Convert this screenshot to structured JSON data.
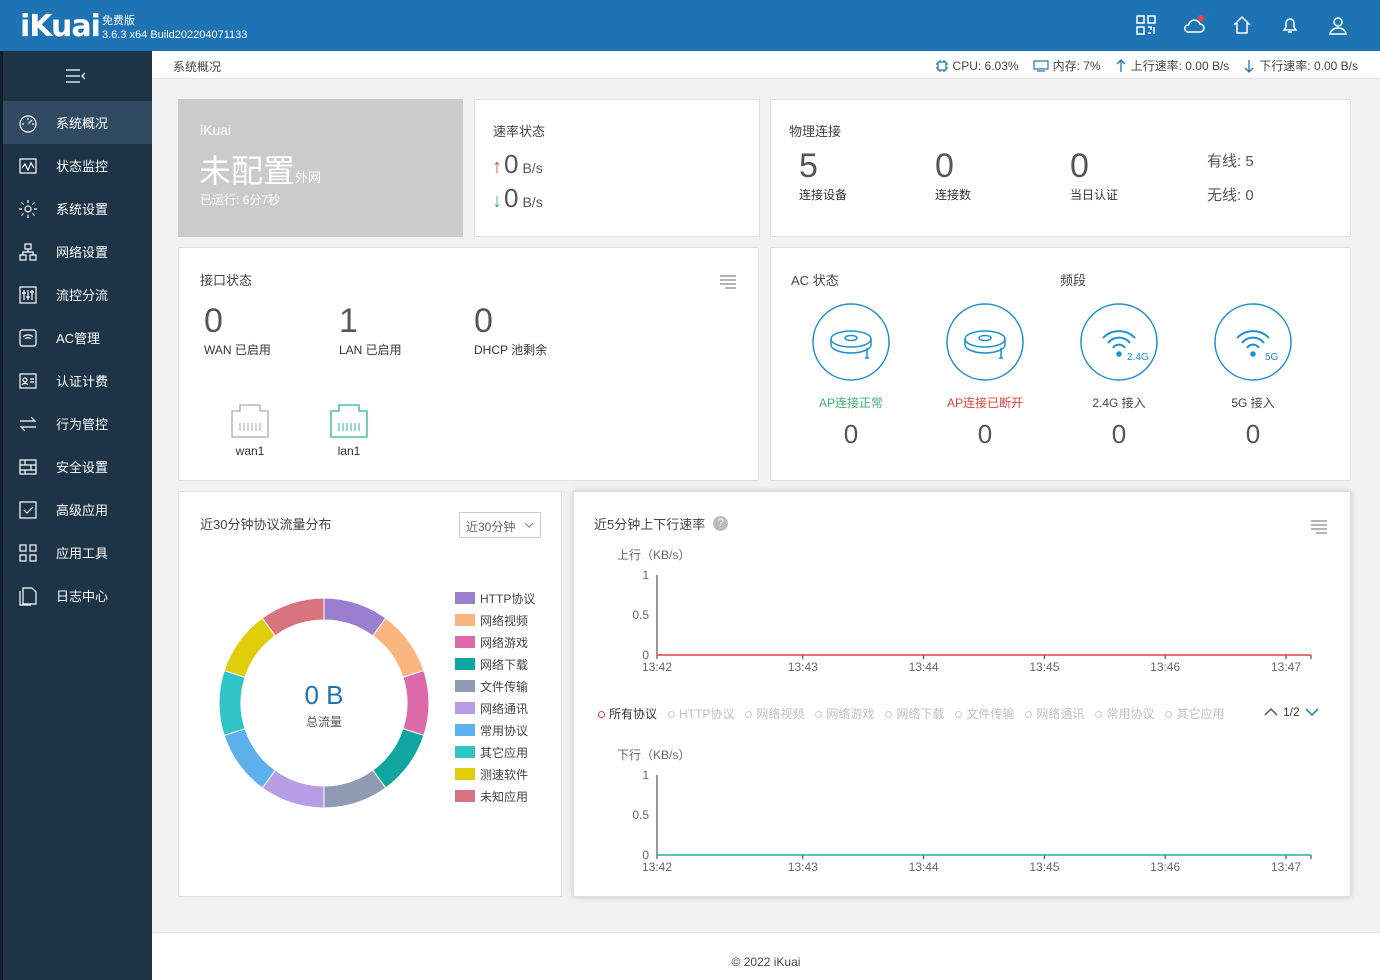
{
  "header": {
    "logo": "iKuai",
    "edition": "免费版",
    "build": "3.6.3 x64 Build202204071133",
    "icons": [
      "qr-grid-icon",
      "cloud-icon",
      "home-icon",
      "bell-icon",
      "user-icon"
    ]
  },
  "sidebar": {
    "items": [
      {
        "label": "系统概况",
        "icon": "dashboard-icon",
        "active": true
      },
      {
        "label": "状态监控",
        "icon": "monitor-icon"
      },
      {
        "label": "系统设置",
        "icon": "gear-icon"
      },
      {
        "label": "网络设置",
        "icon": "network-icon"
      },
      {
        "label": "流控分流",
        "icon": "sliders-icon"
      },
      {
        "label": "AC管理",
        "icon": "wifi-box-icon"
      },
      {
        "label": "认证计费",
        "icon": "id-card-icon"
      },
      {
        "label": "行为管控",
        "icon": "exchange-icon"
      },
      {
        "label": "安全设置",
        "icon": "firewall-icon"
      },
      {
        "label": "高级应用",
        "icon": "check-box-icon"
      },
      {
        "label": "应用工具",
        "icon": "apps-icon"
      },
      {
        "label": "日志中心",
        "icon": "log-icon"
      }
    ]
  },
  "subbar": {
    "breadcrumb": "系统概况",
    "cpu": "CPU: 6.03%",
    "mem": "内存: 7%",
    "up": "上行速率: 0.00 B/s",
    "down": "下行速率: 0.00 B/s"
  },
  "status_card": {
    "brand": "iKuai",
    "state": "未配置",
    "state_suffix": "外网",
    "uptime": "已运行: 6分7秒"
  },
  "rate_card": {
    "title": "速率状态",
    "up_value": "0",
    "up_unit": "B/s",
    "down_value": "0",
    "down_unit": "B/s"
  },
  "physical_card": {
    "title": "物理连接",
    "items": [
      {
        "value": "5",
        "label": "连接设备"
      },
      {
        "value": "0",
        "label": "连接数"
      },
      {
        "value": "0",
        "label": "当日认证"
      }
    ],
    "wired": "有线: 5",
    "wireless": "无线: 0"
  },
  "iface_card": {
    "title": "接口状态",
    "items": [
      {
        "value": "0",
        "label": "WAN 已启用"
      },
      {
        "value": "1",
        "label": "LAN 已启用"
      },
      {
        "value": "0",
        "label": "DHCP 池剩余"
      }
    ],
    "ports": [
      "wan1",
      "lan1"
    ]
  },
  "ac_card": {
    "title": "AC 状态",
    "band_title": "频段",
    "items": [
      {
        "label": "AP连接正常",
        "value": "0",
        "color": "#3cb371"
      },
      {
        "label": "AP连接已断开",
        "value": "0",
        "color": "#e0443d"
      },
      {
        "label": "2.4G 接入",
        "value": "0",
        "color": "#444444",
        "badge": "2.4G"
      },
      {
        "label": "5G 接入",
        "value": "0",
        "color": "#444444",
        "badge": "5G"
      }
    ]
  },
  "protocol_card": {
    "title": "近30分钟协议流量分布",
    "select": "近30分钟",
    "center_value": "0 B",
    "center_label": "总流量",
    "legend": [
      {
        "name": "HTTP协议",
        "color": "#9a7fd1"
      },
      {
        "name": "网络视频",
        "color": "#fbb57f"
      },
      {
        "name": "网络游戏",
        "color": "#dc6aa8"
      },
      {
        "name": "网络下载",
        "color": "#11a5a1"
      },
      {
        "name": "文件传输",
        "color": "#8e9bb3"
      },
      {
        "name": "网络通讯",
        "color": "#b69de4"
      },
      {
        "name": "常用协议",
        "color": "#5cb1ec"
      },
      {
        "name": "其它应用",
        "color": "#2fc5c8"
      },
      {
        "name": "测速软件",
        "color": "#e0cd0c"
      },
      {
        "name": "未知应用",
        "color": "#d9737d"
      }
    ]
  },
  "speed_card": {
    "title": "近5分钟上下行速率",
    "up_label": "上行（KB/s）",
    "down_label": "下行（KB/s）",
    "page": "1/2",
    "filters": [
      "所有协议",
      "HTTP协议",
      "网络视频",
      "网络游戏",
      "网络下载",
      "文件传输",
      "网络通讯",
      "常用协议",
      "其它应用"
    ]
  },
  "chart_data": [
    {
      "type": "line",
      "title": "",
      "ylabel": "上行（KB/s）",
      "x": [
        "13:42",
        "13:43",
        "13:44",
        "13:45",
        "13:46",
        "13:47"
      ],
      "yticks": [
        "1",
        "0.5",
        "0"
      ],
      "ylim": [
        0,
        1
      ],
      "series": [
        {
          "values": [
            0,
            0,
            0,
            0,
            0,
            0
          ],
          "color": "#e0443d"
        }
      ]
    },
    {
      "type": "line",
      "title": "",
      "ylabel": "下行（KB/s）",
      "x": [
        "13:42",
        "13:43",
        "13:44",
        "13:45",
        "13:46",
        "13:47"
      ],
      "yticks": [
        "1",
        "0.5",
        "0"
      ],
      "ylim": [
        0,
        1
      ],
      "series": [
        {
          "values": [
            0,
            0,
            0,
            0,
            0,
            0
          ],
          "color": "#2ab0a0"
        }
      ]
    }
  ],
  "footer": "© 2022 iKuai"
}
